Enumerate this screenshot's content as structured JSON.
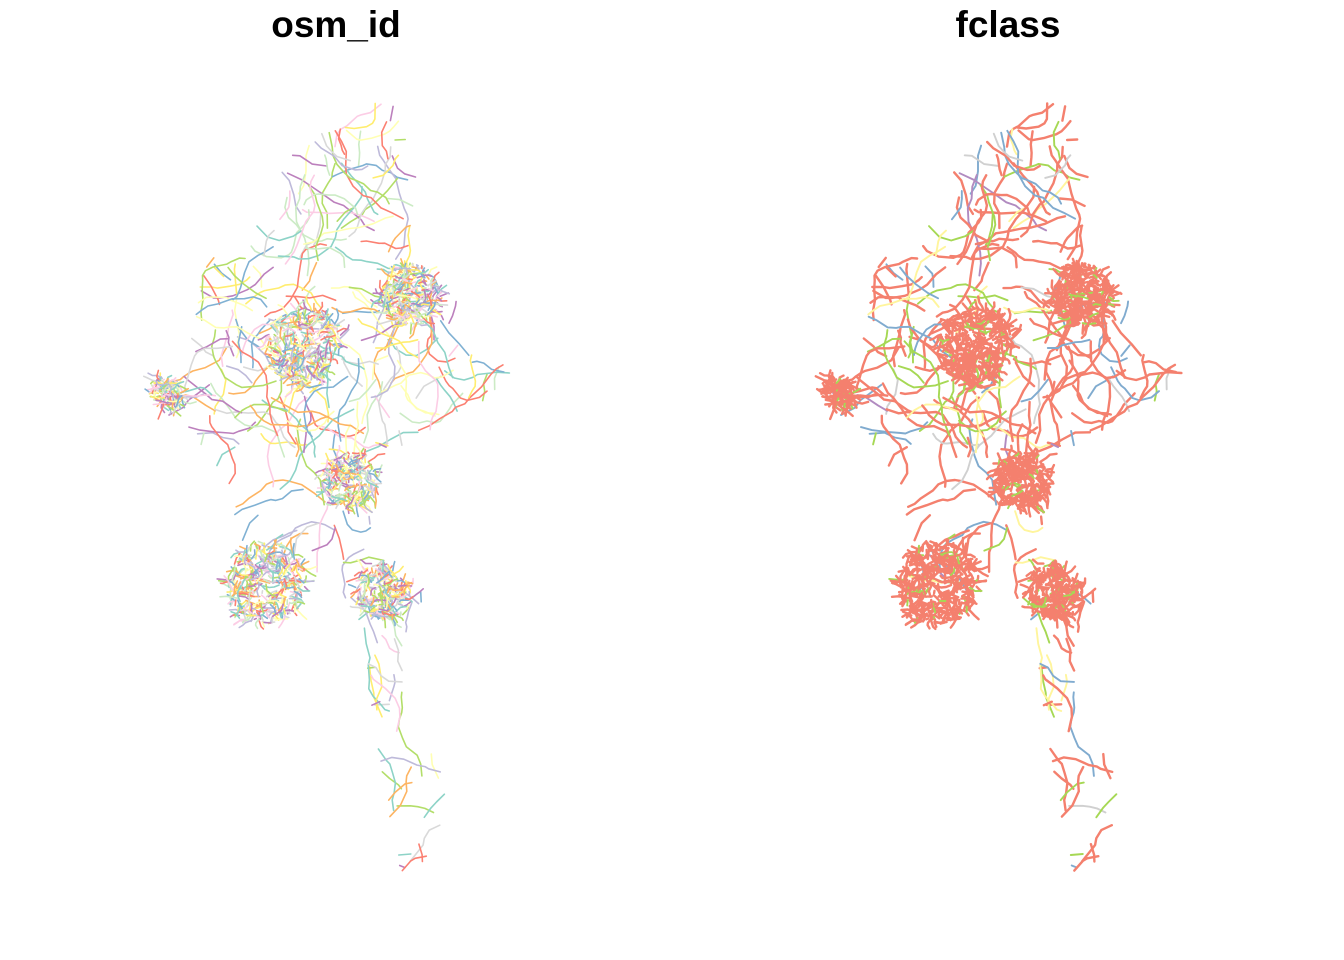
{
  "panels": [
    {
      "title": "osm_id"
    },
    {
      "title": "fclass"
    }
  ],
  "colors": {
    "osm_id_palette": [
      "#8DD3C7",
      "#FFFFB3",
      "#BEBADA",
      "#FB8072",
      "#80B1D3",
      "#FDB462",
      "#B3DE69",
      "#FCCDE5",
      "#D9D9D9",
      "#BC80BD",
      "#CCEBC5",
      "#FFED6F"
    ],
    "fclass_palette": [
      "#F4806E",
      "#A6D854",
      "#80ABCF",
      "#FFF59D",
      "#D0D0D0",
      "#B18BC0"
    ]
  }
}
